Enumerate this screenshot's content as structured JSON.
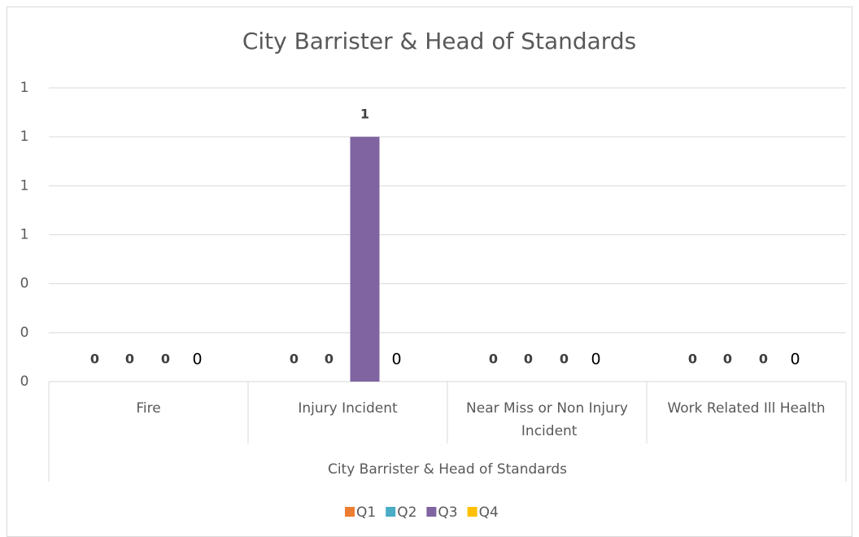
{
  "chart_data": {
    "type": "bar",
    "title": "City Barrister & Head of Standards",
    "categories": [
      "Fire",
      "Injury Incident",
      "Near Miss or Non Injury Incident",
      "Work Related Ill Health"
    ],
    "group_label": "City Barrister & Head of Standards",
    "series": [
      {
        "name": "Q1",
        "color": "#ed7d31",
        "values": [
          0,
          0,
          0,
          0
        ]
      },
      {
        "name": "Q2",
        "color": "#4bacc6",
        "values": [
          0,
          0,
          0,
          0
        ]
      },
      {
        "name": "Q3",
        "color": "#8064a2",
        "values": [
          0,
          1,
          0,
          0
        ]
      },
      {
        "name": "Q4",
        "color": "#ffc000",
        "values": [
          0,
          0,
          0,
          0
        ]
      }
    ],
    "ylim": [
      0,
      1.2
    ],
    "yticks": [
      0,
      {
        "value": 0.2,
        "label": "0"
      },
      {
        "value": 0.4,
        "label": "0"
      },
      {
        "value": 0.6,
        "label": "1"
      },
      {
        "value": 0.8,
        "label": "1"
      },
      1,
      {
        "value": 1.2,
        "label": "1"
      }
    ],
    "grid": true,
    "legend": "bottom"
  }
}
